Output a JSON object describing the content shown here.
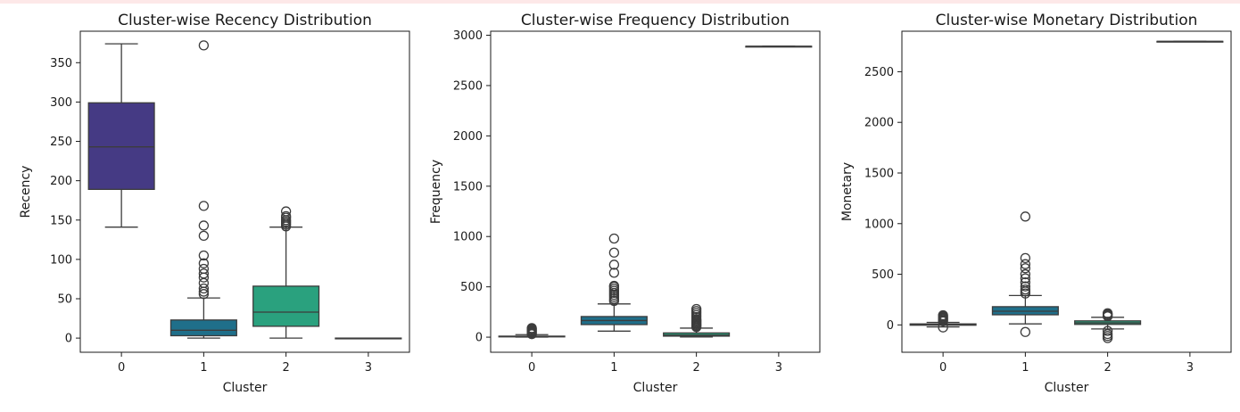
{
  "chart_data": [
    {
      "type": "box",
      "title": "Cluster-wise Recency Distribution",
      "xlabel": "Cluster",
      "ylabel": "Recency",
      "categories": [
        "0",
        "1",
        "2",
        "3"
      ],
      "colors": [
        "#453a84",
        "#1f6f8a",
        "#2aa17e",
        "#43bf6f"
      ],
      "ylim": [
        -18,
        390
      ],
      "yticks": [
        0,
        50,
        100,
        150,
        200,
        250,
        300,
        350
      ],
      "boxes": [
        {
          "cluster": "0",
          "whisker_low": 141,
          "q1": 189,
          "median": 243,
          "q3": 299,
          "whisker_high": 374,
          "outliers": []
        },
        {
          "cluster": "1",
          "whisker_low": 0,
          "q1": 3,
          "median": 10,
          "q3": 23,
          "whisker_high": 51,
          "outliers": [
            56,
            59,
            63,
            70,
            77,
            82,
            88,
            95,
            105,
            130,
            143,
            168,
            372
          ]
        },
        {
          "cluster": "2",
          "whisker_low": 0,
          "q1": 15,
          "median": 33,
          "q3": 66,
          "whisker_high": 141,
          "outliers": [
            142,
            144,
            146,
            148,
            150,
            153,
            155,
            161
          ]
        },
        {
          "cluster": "3",
          "whisker_low": 0,
          "q1": 0,
          "median": 0,
          "q3": 0,
          "whisker_high": 0,
          "outliers": []
        }
      ]
    },
    {
      "type": "box",
      "title": "Cluster-wise Frequency Distribution",
      "xlabel": "Cluster",
      "ylabel": "Frequency",
      "categories": [
        "0",
        "1",
        "2",
        "3"
      ],
      "colors": [
        "#453a84",
        "#1f6f8a",
        "#2aa17e",
        "#43bf6f"
      ],
      "ylim": [
        -150,
        3040
      ],
      "yticks": [
        0,
        500,
        1000,
        1500,
        2000,
        2500,
        3000
      ],
      "boxes": [
        {
          "cluster": "0",
          "whisker_low": 1,
          "q1": 3,
          "median": 6,
          "q3": 10,
          "whisker_high": 25,
          "outliers": [
            30,
            40,
            50,
            60,
            70,
            80,
            90
          ]
        },
        {
          "cluster": "1",
          "whisker_low": 60,
          "q1": 125,
          "median": 165,
          "q3": 205,
          "whisker_high": 330,
          "outliers": [
            360,
            380,
            400,
            420,
            440,
            460,
            480,
            500,
            510,
            640,
            720,
            840,
            980
          ]
        },
        {
          "cluster": "2",
          "whisker_low": 2,
          "q1": 10,
          "median": 22,
          "q3": 42,
          "whisker_high": 90,
          "outliers": [
            100,
            110,
            120,
            130,
            140,
            150,
            160,
            170,
            180,
            200,
            220,
            240,
            260,
            280
          ]
        },
        {
          "cluster": "3",
          "whisker_low": 2890,
          "q1": 2890,
          "median": 2890,
          "q3": 2890,
          "whisker_high": 2890,
          "outliers": []
        }
      ]
    },
    {
      "type": "box",
      "title": "Cluster-wise Monetary Distribution",
      "xlabel": "Cluster",
      "ylabel": "Monetary",
      "categories": [
        "0",
        "1",
        "2",
        "3"
      ],
      "colors": [
        "#453a84",
        "#1f6f8a",
        "#2aa17e",
        "#43bf6f"
      ],
      "ylim": [
        -270,
        2900
      ],
      "yticks": [
        0,
        500,
        1000,
        1500,
        2000,
        2500
      ],
      "boxes": [
        {
          "cluster": "0",
          "whisker_low": -20,
          "q1": -3,
          "median": 3,
          "q3": 10,
          "whisker_high": 25,
          "outliers": [
            -25,
            35,
            45,
            55,
            65,
            75,
            85,
            95
          ]
        },
        {
          "cluster": "1",
          "whisker_low": 10,
          "q1": 100,
          "median": 135,
          "q3": 180,
          "whisker_high": 290,
          "outliers": [
            -70,
            310,
            330,
            350,
            380,
            420,
            460,
            500,
            560,
            600,
            660,
            1070
          ]
        },
        {
          "cluster": "2",
          "whisker_low": -40,
          "q1": 5,
          "median": 20,
          "q3": 40,
          "whisker_high": 75,
          "outliers": [
            -130,
            -110,
            -90,
            -60,
            85,
            95,
            105,
            115
          ]
        },
        {
          "cluster": "3",
          "whisker_low": 2800,
          "q1": 2800,
          "median": 2800,
          "q3": 2800,
          "whisker_high": 2800,
          "outliers": []
        }
      ]
    }
  ]
}
